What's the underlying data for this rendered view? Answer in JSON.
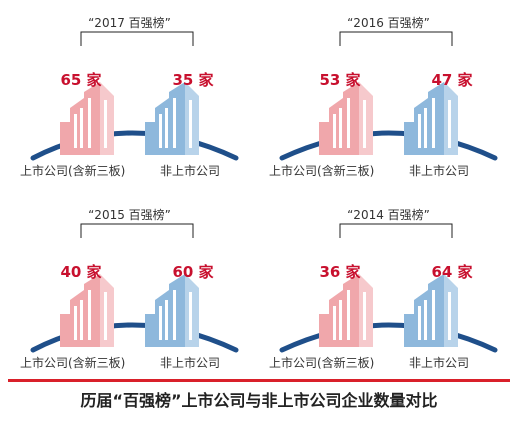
{
  "panels": [
    {
      "title": "“2017 百强榜”",
      "listed_count": "65 家",
      "nonlisted_count": "35 家",
      "listed_label": "上市公司(含新三板)",
      "nonlisted_label": "非上市公司"
    },
    {
      "title": "“2016 百强榜”",
      "listed_count": "53 家",
      "nonlisted_count": "47 家",
      "listed_label": "上市公司(含新三板)",
      "nonlisted_label": "非上市公司"
    },
    {
      "title": "“2015 百强榜”",
      "listed_count": "40 家",
      "nonlisted_count": "60 家",
      "listed_label": "上市公司(含新三板)",
      "nonlisted_label": "非上市公司"
    },
    {
      "title": "“2014 百强榜”",
      "listed_count": "36 家",
      "nonlisted_count": "64 家",
      "listed_label": "上市公司(含新三板)",
      "nonlisted_label": "非上市公司"
    }
  ],
  "caption": "历届“百强榜”上市公司与非上市公司企业数量对比",
  "colors": {
    "listed": "#f0a7ab",
    "nonlisted": "#8eb8dc",
    "count_text": "#c8102e",
    "divider": "#d9202a",
    "arc": "#1f4f8a"
  },
  "icons": {
    "listed": "building-icon",
    "nonlisted": "building-icon"
  }
}
